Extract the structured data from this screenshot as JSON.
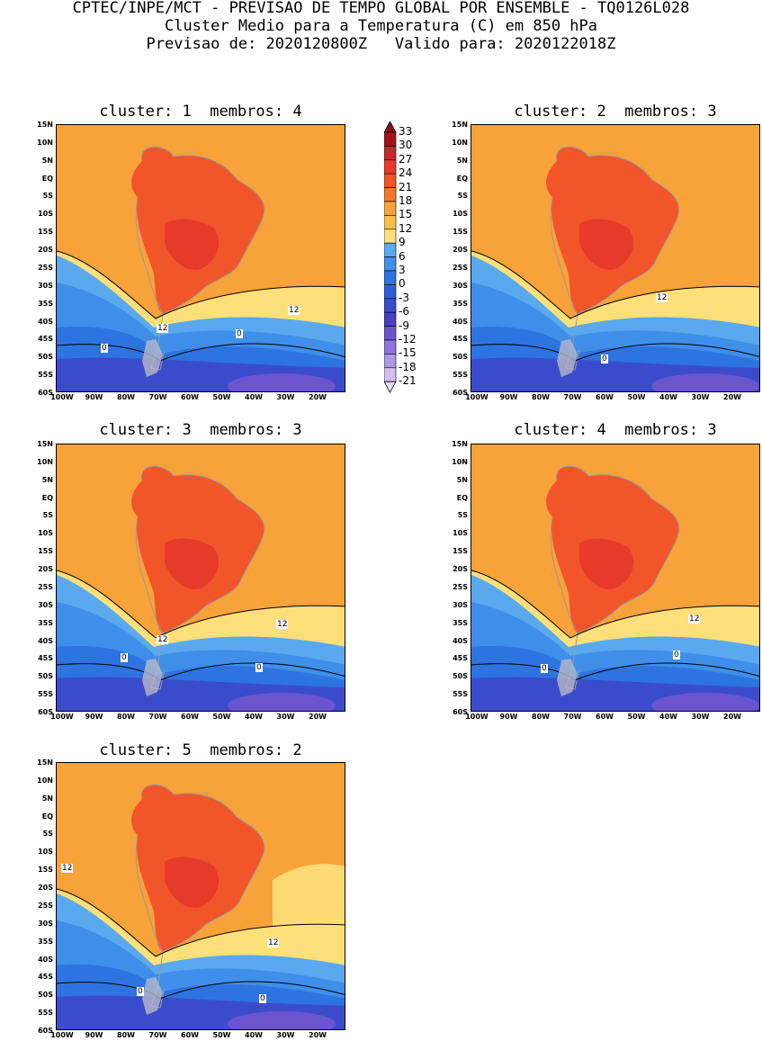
{
  "header": {
    "line1": "CPTEC/INPE/MCT - PREVISAO DE TEMPO GLOBAL POR ENSEMBLE - TQ0126L028",
    "line2": "Cluster Medio para a Temperatura (C) em 850 hPa",
    "line3": "Previsao de: 2020120800Z   Valido para: 2020122018Z"
  },
  "panels": [
    {
      "title": "cluster: 1  membros: 4",
      "contour_labels": [
        "12",
        "12",
        "0",
        "0"
      ]
    },
    {
      "title": "cluster: 2  membros: 3",
      "contour_labels": [
        "12",
        "0"
      ]
    },
    {
      "title": "cluster: 3  membros: 3",
      "contour_labels": [
        "12",
        "12",
        "0",
        "0"
      ]
    },
    {
      "title": "cluster: 4  membros: 3",
      "contour_labels": [
        "12",
        "0",
        "0"
      ]
    },
    {
      "title": "cluster: 5  membros: 2",
      "contour_labels": [
        "12",
        "12",
        "0",
        "0"
      ]
    }
  ],
  "lat_labels": [
    "15N",
    "10N",
    "5N",
    "EQ",
    "5S",
    "10S",
    "15S",
    "20S",
    "25S",
    "30S",
    "35S",
    "40S",
    "45S",
    "50S",
    "55S",
    "60S"
  ],
  "lon_labels": [
    "100W",
    "90W",
    "80W",
    "70W",
    "60W",
    "50W",
    "40W",
    "30W",
    "20W"
  ],
  "colorbar": {
    "labels": [
      "33",
      "30",
      "27",
      "24",
      "21",
      "18",
      "15",
      "12",
      "9",
      "6",
      "3",
      "0",
      "-3",
      "-6",
      "-9",
      "-12",
      "-15",
      "-18",
      "-21"
    ],
    "colors": [
      "#a0141e",
      "#c8282d",
      "#e63a2a",
      "#f2552a",
      "#f7762d",
      "#f8a23a",
      "#fbbf45",
      "#fde07a",
      "#5aa9ee",
      "#3f8eea",
      "#2d74e0",
      "#2e5ed6",
      "#3a4ccc",
      "#4d3ec6",
      "#6a55cf",
      "#8c74dc",
      "#ad98e6",
      "#cdbff0"
    ]
  },
  "colors": {
    "ocean_warm": "#f8a23a",
    "ocean_mid": "#fde07a",
    "land_hot": "#f2552a",
    "land_hotter": "#e63a2a",
    "cold1": "#5aa9ee",
    "cold2": "#3f8eea",
    "cold3": "#2d74e0",
    "cold4": "#3a4ccc",
    "cold5": "#6a55cf",
    "border": "#9a9a9a"
  }
}
